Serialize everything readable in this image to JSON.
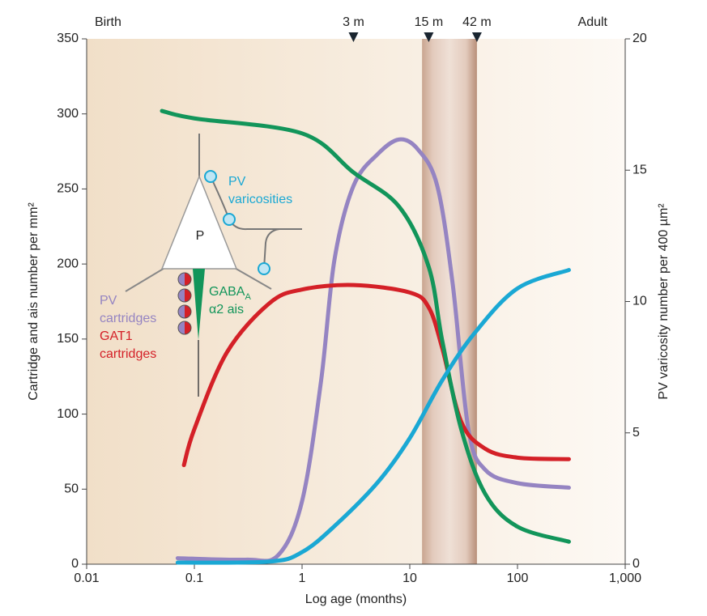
{
  "chart_data": {
    "type": "line",
    "xlabel": "Log age (months)",
    "ylabel": "Cartridge and ais number per mm²",
    "y2label": "PV varicosity number per 400 µm²",
    "xscale": "log",
    "xlim": [
      0.01,
      1000
    ],
    "xticks": [
      0.01,
      0.1,
      1,
      10,
      100,
      {
        "value": 1000,
        "label": "1,000"
      }
    ],
    "ylim": [
      0,
      350
    ],
    "yticks": [
      0,
      50,
      100,
      150,
      200,
      250,
      300,
      350
    ],
    "y2lim": [
      0,
      20
    ],
    "y2ticks": [
      0,
      5,
      10,
      15,
      20
    ],
    "top_labels": {
      "start": "Birth",
      "end": "Adult"
    },
    "markers": [
      {
        "x": 3,
        "label": "3 m"
      },
      {
        "x": 15,
        "label": "15 m"
      },
      {
        "x": 42,
        "label": "42 m"
      }
    ],
    "shaded_range": [
      13,
      42
    ],
    "inset_label": "P",
    "series": [
      {
        "label_lines": [
          "PV",
          "cartridges"
        ],
        "color": "#9584c2",
        "x": [
          0.07,
          0.3,
          0.6,
          1,
          1.5,
          2,
          3,
          5,
          8,
          12,
          18,
          25,
          35,
          50,
          100,
          300
        ],
        "values": [
          4,
          3,
          6,
          42,
          122,
          203,
          252,
          273,
          283,
          276,
          252,
          187,
          90,
          63,
          54,
          51
        ]
      },
      {
        "label_lines": [
          "GAT1",
          "cartridges"
        ],
        "color": "#d42027",
        "x": [
          0.08,
          0.1,
          0.2,
          0.5,
          1,
          3,
          10,
          15,
          20,
          30,
          50,
          100,
          300
        ],
        "values": [
          66,
          90,
          141,
          174,
          183,
          186,
          181,
          171,
          144,
          95,
          77,
          71,
          70
        ]
      },
      {
        "label_lines": [
          "GABA",
          "α2 ais"
        ],
        "label_subscript": "A",
        "color": "#12955a",
        "x": [
          0.05,
          0.1,
          1,
          3,
          8,
          15,
          20,
          30,
          50,
          100,
          300
        ],
        "values": [
          302,
          297,
          287,
          261,
          238,
          198,
          149,
          90,
          47,
          25,
          15
        ]
      },
      {
        "label_lines": [
          "PV",
          "varicosities"
        ],
        "color": "#1aa8d4",
        "axis": "y2",
        "x": [
          0.07,
          0.5,
          1,
          2,
          5,
          10,
          20,
          40,
          100,
          300
        ],
        "values": [
          0.06,
          0.1,
          0.46,
          1.45,
          3.1,
          4.8,
          7,
          8.8,
          10.5,
          11.2
        ]
      }
    ]
  }
}
